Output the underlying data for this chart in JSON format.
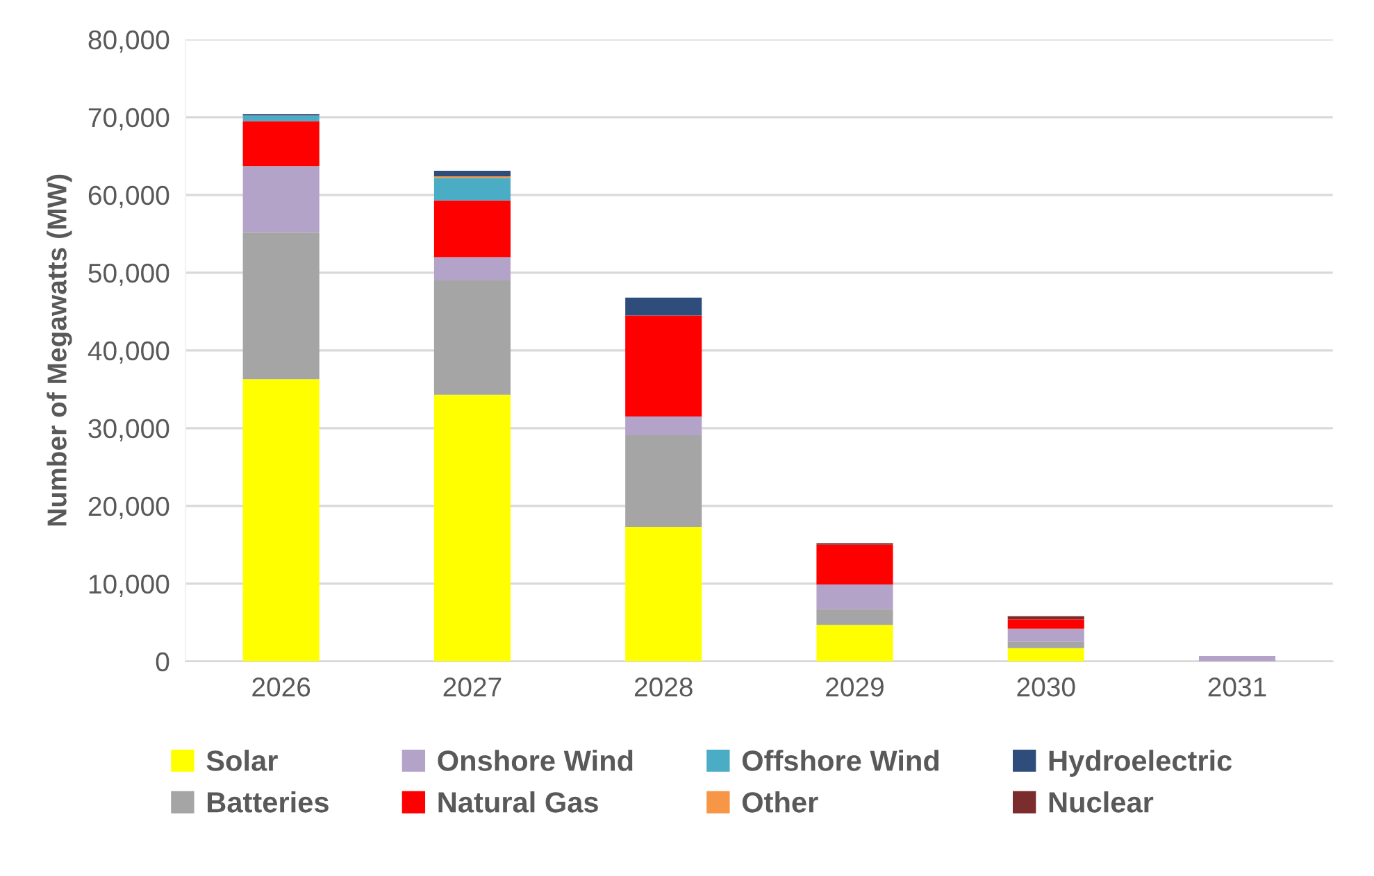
{
  "chart_data": {
    "type": "bar",
    "stacked": true,
    "ylabel": "Number of Megawatts (MW)",
    "categories": [
      "2026",
      "2027",
      "2028",
      "2029",
      "2030",
      "2031"
    ],
    "series": [
      {
        "name": "Solar",
        "color": "#ffff00",
        "values": [
          36300,
          34300,
          17300,
          4700,
          1700,
          0
        ]
      },
      {
        "name": "Batteries",
        "color": "#a5a5a5",
        "values": [
          18900,
          14700,
          11800,
          2000,
          800,
          0
        ]
      },
      {
        "name": "Onshore Wind",
        "color": "#b4a3c8",
        "values": [
          8500,
          3000,
          2400,
          3200,
          1700,
          700
        ]
      },
      {
        "name": "Natural Gas",
        "color": "#ff0000",
        "values": [
          5800,
          7300,
          13000,
          5100,
          1200,
          0
        ]
      },
      {
        "name": "Offshore Wind",
        "color": "#4bacc6",
        "values": [
          700,
          2900,
          0,
          0,
          0,
          0
        ]
      },
      {
        "name": "Other",
        "color": "#f79646",
        "values": [
          0,
          200,
          0,
          0,
          0,
          0
        ]
      },
      {
        "name": "Hydroelectric",
        "color": "#2e4d7b",
        "values": [
          200,
          700,
          2300,
          0,
          0,
          0
        ]
      },
      {
        "name": "Nuclear",
        "color": "#7b2c2c",
        "values": [
          0,
          0,
          0,
          200,
          400,
          0
        ]
      }
    ],
    "ylim": [
      0,
      80000
    ],
    "yticks": [
      {
        "value": 0,
        "label": "0"
      },
      {
        "value": 10000,
        "label": "10,000"
      },
      {
        "value": 20000,
        "label": "20,000"
      },
      {
        "value": 30000,
        "label": "30,000"
      },
      {
        "value": 40000,
        "label": "40,000"
      },
      {
        "value": 50000,
        "label": "50,000"
      },
      {
        "value": 60000,
        "label": "60,000"
      },
      {
        "value": 70000,
        "label": "70,000"
      },
      {
        "value": 80000,
        "label": "80,000"
      }
    ],
    "grid": "y",
    "legend": "bottom"
  }
}
